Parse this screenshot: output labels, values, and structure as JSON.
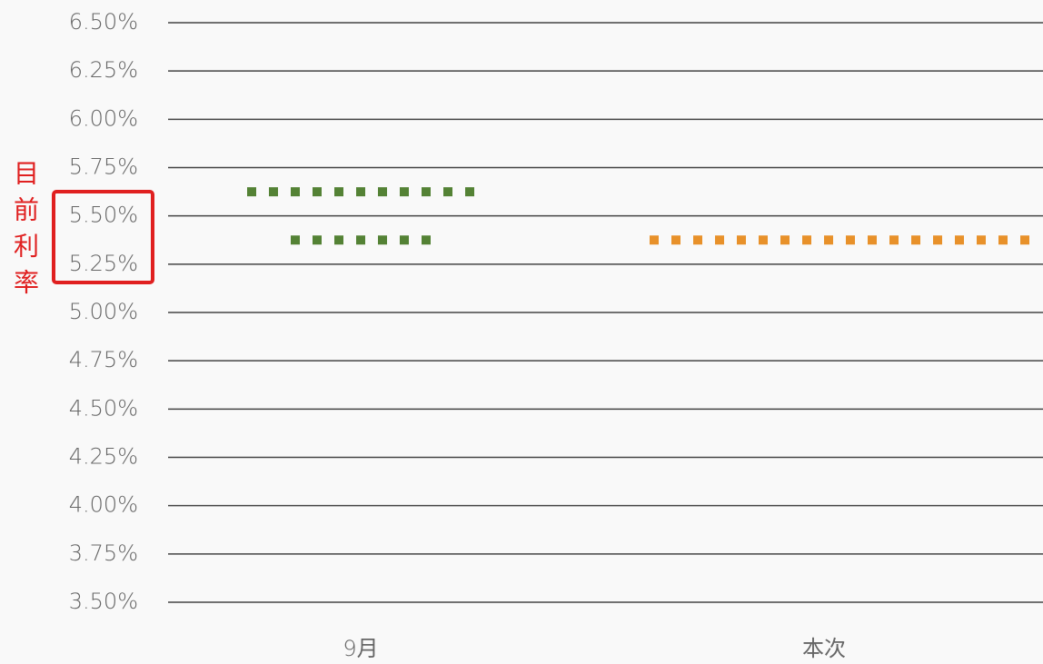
{
  "chart_data": {
    "type": "dotted-level",
    "categories": [
      "9月",
      "本次"
    ],
    "series": [
      {
        "color": "#548235",
        "values": [
          5.625,
          null
        ]
      },
      {
        "color": "#548235",
        "values": [
          5.375,
          null
        ]
      },
      {
        "color": "#e8912a",
        "values": [
          null,
          5.375
        ]
      }
    ],
    "ylim": [
      3.5,
      6.5
    ],
    "yticks": [
      {
        "value": 3.5,
        "label": "3.50%"
      },
      {
        "value": 3.75,
        "label": "3.75%"
      },
      {
        "value": 4,
        "label": "4.00%"
      },
      {
        "value": 4.25,
        "label": "4.25%"
      },
      {
        "value": 4.5,
        "label": "4.50%"
      },
      {
        "value": 4.75,
        "label": "4.75%"
      },
      {
        "value": 5,
        "label": "5.00%"
      },
      {
        "value": 5.25,
        "label": "5.25%"
      },
      {
        "value": 5.5,
        "label": "5.50%"
      },
      {
        "value": 5.75,
        "label": "5.75%"
      },
      {
        "value": 6,
        "label": "6.00%"
      },
      {
        "value": 6.25,
        "label": "6.25%"
      },
      {
        "value": 6.5,
        "label": "6.50%"
      }
    ],
    "grid": true,
    "annotation": "目前利率"
  }
}
